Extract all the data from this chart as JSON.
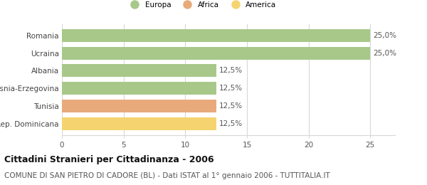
{
  "categories": [
    "Romania",
    "Ucraina",
    "Albania",
    "Bosnia-Erzegovina",
    "Tunisia",
    "Rep. Dominicana"
  ],
  "values": [
    25.0,
    25.0,
    12.5,
    12.5,
    12.5,
    12.5
  ],
  "bar_colors": [
    "#a8c88a",
    "#a8c88a",
    "#a8c88a",
    "#a8c88a",
    "#e8aa7a",
    "#f5d470"
  ],
  "legend_items": [
    {
      "label": "Europa",
      "color": "#a8c88a"
    },
    {
      "label": "Africa",
      "color": "#e8aa7a"
    },
    {
      "label": "America",
      "color": "#f5d470"
    }
  ],
  "xlim": [
    0,
    27
  ],
  "xticks": [
    0,
    5,
    10,
    15,
    20,
    25
  ],
  "title": "Cittadini Stranieri per Cittadinanza - 2006",
  "subtitle": "COMUNE DI SAN PIETRO DI CADORE (BL) - Dati ISTAT al 1° gennaio 2006 - TUTTITALIA.IT",
  "title_fontsize": 9,
  "subtitle_fontsize": 7.5,
  "label_fontsize": 7.5,
  "value_label_fontsize": 7.5,
  "value_labels": [
    "25,0%",
    "25,0%",
    "12,5%",
    "12,5%",
    "12,5%",
    "12,5%"
  ],
  "background_color": "#ffffff",
  "grid_color": "#d8d8d8"
}
